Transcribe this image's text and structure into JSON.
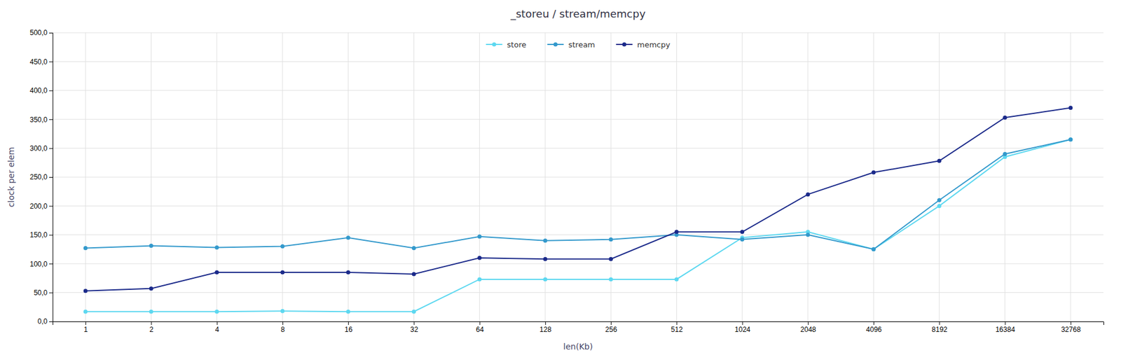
{
  "chart_data": {
    "type": "line",
    "title": "_storeu / stream/memcpy",
    "xlabel": "len(Kb)",
    "ylabel": "clock per elem",
    "categories": [
      "1",
      "2",
      "4",
      "8",
      "16",
      "32",
      "64",
      "128",
      "256",
      "512",
      "1024",
      "2048",
      "4096",
      "8192",
      "16384",
      "32768"
    ],
    "series": [
      {
        "name": "store",
        "color": "#5DD8F0",
        "marker": "circle",
        "line_style": "solid",
        "values": [
          17,
          17,
          17,
          18,
          17,
          17,
          73,
          73,
          73,
          73,
          145,
          155,
          125,
          200,
          285,
          315
        ]
      },
      {
        "name": "stream",
        "color": "#3399CC",
        "marker": "circle",
        "line_style": "solid",
        "values": [
          127,
          131,
          128,
          130,
          145,
          127,
          147,
          140,
          142,
          150,
          142,
          150,
          125,
          210,
          290,
          315
        ]
      },
      {
        "name": "memcpy",
        "color": "#1B2A8A",
        "marker": "circle",
        "line_style": "solid",
        "values": [
          53,
          57,
          85,
          85,
          85,
          82,
          110,
          108,
          108,
          155,
          155,
          220,
          258,
          278,
          353,
          370
        ]
      }
    ],
    "ylim": [
      0,
      500
    ],
    "yticks": [
      {
        "value": 0,
        "label": "0,0"
      },
      {
        "value": 50,
        "label": "50,0"
      },
      {
        "value": 100,
        "label": "100,0"
      },
      {
        "value": 150,
        "label": "150,0"
      },
      {
        "value": 200,
        "label": "200,0"
      },
      {
        "value": 250,
        "label": "250,0"
      },
      {
        "value": 300,
        "label": "300,0"
      },
      {
        "value": 350,
        "label": "350,0"
      },
      {
        "value": 400,
        "label": "400,0"
      },
      {
        "value": 450,
        "label": "450,0"
      },
      {
        "value": 500,
        "label": "500,0"
      }
    ],
    "grid": true,
    "legend": "top"
  }
}
